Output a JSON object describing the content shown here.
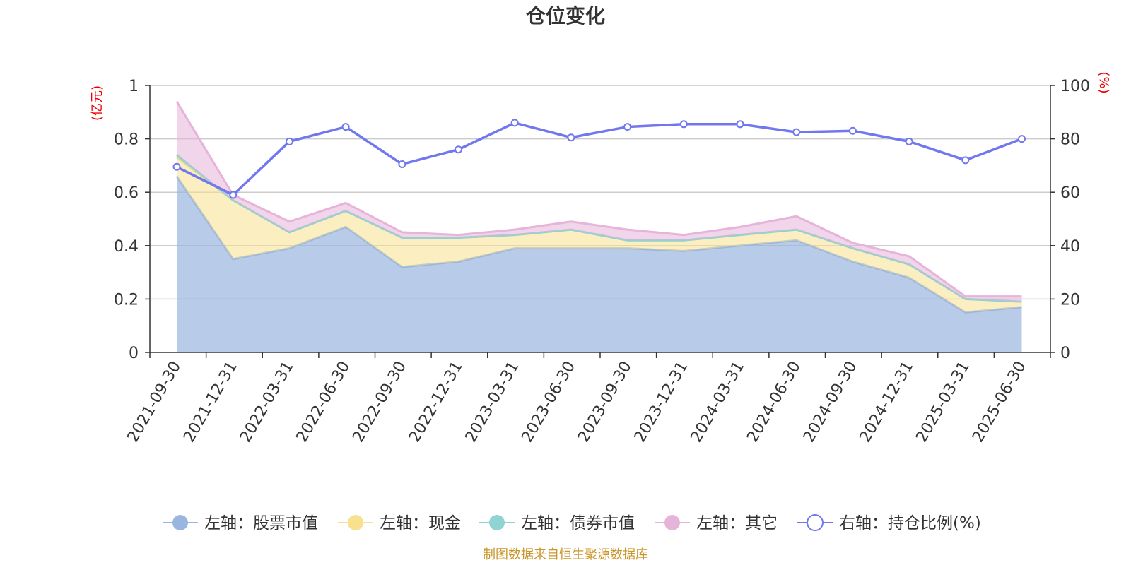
{
  "chart_data": {
    "type": "area",
    "title": "仓位变化",
    "categories": [
      "2021-09-30",
      "2021-12-31",
      "2022-03-31",
      "2022-06-30",
      "2022-09-30",
      "2022-12-31",
      "2023-03-31",
      "2023-06-30",
      "2023-09-30",
      "2023-12-31",
      "2024-03-31",
      "2024-06-30",
      "2024-09-30",
      "2024-12-31",
      "2025-03-31",
      "2025-06-30"
    ],
    "left_axis": {
      "unit": "(亿元)",
      "min": 0,
      "max": 1,
      "ticks": [
        "0",
        "0.2",
        "0.4",
        "0.6",
        "0.8",
        "1"
      ]
    },
    "right_axis": {
      "unit": "(%)",
      "min": 0,
      "max": 100,
      "ticks": [
        "0",
        "20",
        "40",
        "60",
        "80",
        "100"
      ]
    },
    "grid": true,
    "stacked": true,
    "legend_position": "bottom",
    "series": [
      {
        "name": "左轴：股票市值",
        "axis": "left",
        "kind": "area",
        "color": "#9ab6e0",
        "values": [
          0.66,
          0.35,
          0.39,
          0.47,
          0.32,
          0.34,
          0.39,
          0.39,
          0.39,
          0.38,
          0.4,
          0.42,
          0.34,
          0.28,
          0.15,
          0.17
        ]
      },
      {
        "name": "左轴：现金",
        "axis": "left",
        "kind": "area",
        "color": "#f8e08e",
        "values": [
          0.07,
          0.22,
          0.06,
          0.06,
          0.11,
          0.09,
          0.05,
          0.07,
          0.03,
          0.04,
          0.04,
          0.04,
          0.05,
          0.05,
          0.05,
          0.02
        ]
      },
      {
        "name": "左轴：债券市值",
        "axis": "left",
        "kind": "area",
        "color": "#8fd3d2",
        "values": [
          0.01,
          0,
          0,
          0,
          0,
          0,
          0,
          0,
          0,
          0,
          0,
          0,
          0,
          0,
          0,
          0
        ]
      },
      {
        "name": "左轴：其它",
        "axis": "left",
        "kind": "area",
        "color": "#e6b3d9",
        "values": [
          0.2,
          0.02,
          0.04,
          0.03,
          0.02,
          0.01,
          0.02,
          0.03,
          0.04,
          0.02,
          0.03,
          0.05,
          0.02,
          0.03,
          0.01,
          0.02
        ]
      },
      {
        "name": "右轴：持仓比例(%)",
        "axis": "right",
        "kind": "line",
        "color": "#7177ee",
        "values": [
          69.5,
          59,
          79,
          84.5,
          70.5,
          76,
          86,
          80.5,
          84.5,
          85.5,
          85.5,
          82.5,
          83,
          79,
          72,
          80
        ]
      }
    ]
  },
  "footer": {
    "source": "制图数据来自恒生聚源数据库"
  }
}
